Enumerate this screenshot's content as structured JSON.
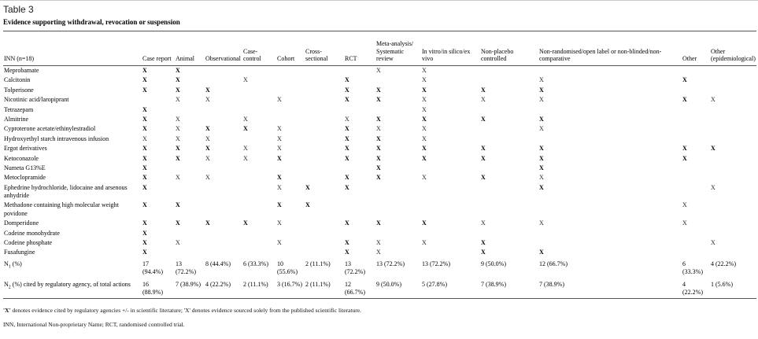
{
  "page": {
    "table_label": "Table 3",
    "table_title": "Evidence supporting withdrawal, revocation or suspension"
  },
  "table": {
    "inn_header": "INN (n=18)",
    "mark_glyph": "X",
    "columns": [
      {
        "key": "case-report",
        "label": "Case report"
      },
      {
        "key": "animal",
        "label": "Animal"
      },
      {
        "key": "observational",
        "label": "Observational"
      },
      {
        "key": "case-control",
        "label": "Case-control"
      },
      {
        "key": "cohort",
        "label": "Cohort"
      },
      {
        "key": "cross-sectional",
        "label": "Cross-\nsectional"
      },
      {
        "key": "rct",
        "label": "RCT"
      },
      {
        "key": "meta-analysis",
        "label": "Meta-analysis/\nSystematic\nreview"
      },
      {
        "key": "in-vitro",
        "label": "In vitro/in silico/ex\nvivo"
      },
      {
        "key": "non-placebo",
        "label": "Non-placebo\ncontrolled"
      },
      {
        "key": "non-randomised",
        "label": "Non-randomised/open label or non-blinded/non-\ncomparative"
      },
      {
        "key": "other",
        "label": "Other"
      },
      {
        "key": "other-epidemiological",
        "label": "Other\n(epidemiological)"
      }
    ],
    "rows": [
      {
        "name": "Meprobamate",
        "marks": [
          "B",
          "B",
          "",
          "",
          "",
          "",
          "",
          "L",
          "L",
          "",
          "",
          "",
          ""
        ]
      },
      {
        "name": "Calcitonin",
        "marks": [
          "B",
          "B",
          "",
          "L",
          "",
          "",
          "B",
          "",
          "L",
          "",
          "L",
          "B",
          ""
        ]
      },
      {
        "name": "Tolperisone",
        "marks": [
          "B",
          "B",
          "B",
          "",
          "",
          "",
          "B",
          "B",
          "B",
          "B",
          "B",
          "",
          ""
        ]
      },
      {
        "name": "Nicotinic acid/laropiprant",
        "marks": [
          "",
          "L",
          "L",
          "",
          "L",
          "",
          "B",
          "B",
          "L",
          "L",
          "L",
          "B",
          "L"
        ]
      },
      {
        "name": "Tetrazepam",
        "marks": [
          "B",
          "",
          "",
          "",
          "",
          "",
          "",
          "",
          "L",
          "",
          "",
          "",
          ""
        ]
      },
      {
        "name": "Almitrine",
        "marks": [
          "B",
          "L",
          "",
          "L",
          "",
          "",
          "L",
          "B",
          "B",
          "B",
          "B",
          "",
          ""
        ]
      },
      {
        "name": "Cyproterone acetate/ethinylestradiol",
        "marks": [
          "B",
          "L",
          "B",
          "B",
          "L",
          "",
          "B",
          "L",
          "L",
          "",
          "L",
          "",
          ""
        ]
      },
      {
        "name": "Hydroxyethyl starch intravenous infusion",
        "marks": [
          "L",
          "L",
          "L",
          "",
          "L",
          "",
          "B",
          "B",
          "L",
          "",
          "",
          "",
          ""
        ]
      },
      {
        "name": "Ergot derivatives",
        "marks": [
          "B",
          "B",
          "B",
          "L",
          "L",
          "",
          "B",
          "B",
          "B",
          "B",
          "B",
          "B",
          "B"
        ]
      },
      {
        "name": "Ketoconazole",
        "marks": [
          "B",
          "B",
          "L",
          "L",
          "B",
          "",
          "B",
          "B",
          "B",
          "B",
          "B",
          "B",
          ""
        ]
      },
      {
        "name": "Numeta G13%E",
        "marks": [
          "B",
          "",
          "",
          "",
          "",
          "",
          "",
          "B",
          "",
          "",
          "B",
          "",
          ""
        ]
      },
      {
        "name": "Metoclopramide",
        "marks": [
          "B",
          "L",
          "L",
          "",
          "B",
          "",
          "B",
          "B",
          "L",
          "B",
          "L",
          "",
          ""
        ]
      },
      {
        "name": "Ephedrine hydrochloride, lidocaine and arsenous anhydride",
        "marks": [
          "B",
          "",
          "",
          "",
          "L",
          "B",
          "B",
          "",
          "",
          "",
          "B",
          "",
          "L"
        ]
      },
      {
        "name": "Methadone containing high molecular weight povidone",
        "marks": [
          "B",
          "B",
          "",
          "",
          "B",
          "B",
          "",
          "",
          "",
          "",
          "",
          "L",
          ""
        ]
      },
      {
        "name": "Domperidone",
        "marks": [
          "B",
          "B",
          "B",
          "B",
          "L",
          "",
          "B",
          "B",
          "B",
          "L",
          "L",
          "L",
          ""
        ]
      },
      {
        "name": "Codeine monohydrate",
        "marks": [
          "B",
          "",
          "",
          "",
          "",
          "",
          "",
          "",
          "",
          "",
          "",
          "",
          ""
        ]
      },
      {
        "name": "Codeine phosphate",
        "marks": [
          "B",
          "L",
          "",
          "",
          "L",
          "",
          "B",
          "L",
          "L",
          "B",
          "",
          "",
          "L"
        ]
      },
      {
        "name": "Fusafungine",
        "marks": [
          "B",
          "",
          "",
          "",
          "",
          "",
          "B",
          "L",
          "",
          "B",
          "B",
          "",
          ""
        ]
      }
    ],
    "totals": [
      {
        "prefix": "N",
        "sub": "1",
        "suffix": " (%)",
        "values": [
          "17\n(94.4%)",
          "13\n(72.2%)",
          "8 (44.4%)",
          "6 (33.3%)",
          "10\n(55.6%)",
          "2 (11.1%)",
          "13\n(72.2%)",
          "13 (72.2%)",
          "13 (72.2%)",
          "9 (50.0%)",
          "12 (66.7%)",
          "6\n(33.3%)",
          "4 (22.2%)"
        ]
      },
      {
        "prefix": "N",
        "sub": "2",
        "suffix": " (%) cited by regulatory agency, of total actions",
        "values": [
          "16\n(88.9%)",
          "7 (38.9%)",
          "4 (22.2%)",
          "2 (11.1%)",
          "3 (16.7%)",
          "2 (11.1%)",
          "12\n(66.7%)",
          "9 (50.0%)",
          "5 (27.8%)",
          "7 (38.9%)",
          "7 (38.9%)",
          "4\n(22.2%)",
          "1 (5.6%)"
        ]
      }
    ]
  },
  "footnotes": {
    "legend": {
      "bold_x": "'X'",
      "text_mid": " denotes evidence cited by regulatory agencies +/- in scientific literature; ",
      "light_x": "'X'",
      "text_end": " denotes evidence sourced solely from the published scientific literature."
    },
    "abbreviations": "INN, International Non-proprietary Name; RCT, randomised controlled trial."
  }
}
